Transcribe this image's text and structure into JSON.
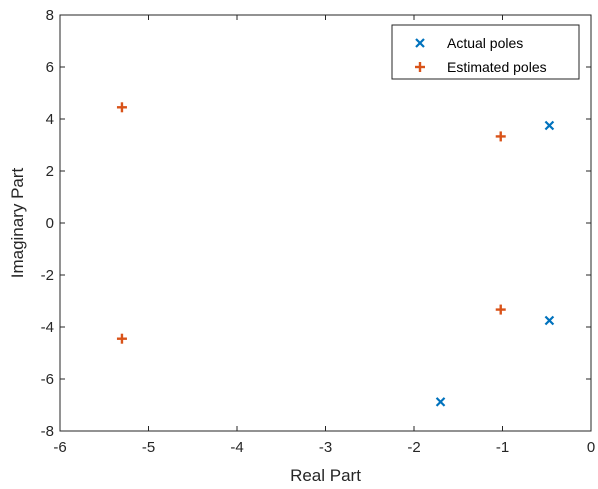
{
  "chart_data": {
    "type": "scatter",
    "title": "",
    "xlabel": "Real Part",
    "ylabel": "Imaginary Part",
    "xlim": [
      -6,
      0
    ],
    "ylim": [
      -8,
      8
    ],
    "xticks": [
      -6,
      -5,
      -4,
      -3,
      -2,
      -1,
      0
    ],
    "yticks": [
      -8,
      -6,
      -4,
      -2,
      0,
      2,
      4,
      6,
      8
    ],
    "grid": false,
    "legend_position": "top-right",
    "series": [
      {
        "name": "Actual poles",
        "marker": "x",
        "color": "#0072BD",
        "points": [
          {
            "x": -0.47,
            "y": 3.75
          },
          {
            "x": -0.47,
            "y": -3.75
          },
          {
            "x": -1.7,
            "y": -6.88
          }
        ]
      },
      {
        "name": "Estimated poles",
        "marker": "+",
        "color": "#D95319",
        "points": [
          {
            "x": -5.3,
            "y": 4.45
          },
          {
            "x": -5.3,
            "y": -4.45
          },
          {
            "x": -1.02,
            "y": 3.33
          },
          {
            "x": -1.02,
            "y": -3.33
          }
        ]
      }
    ]
  }
}
